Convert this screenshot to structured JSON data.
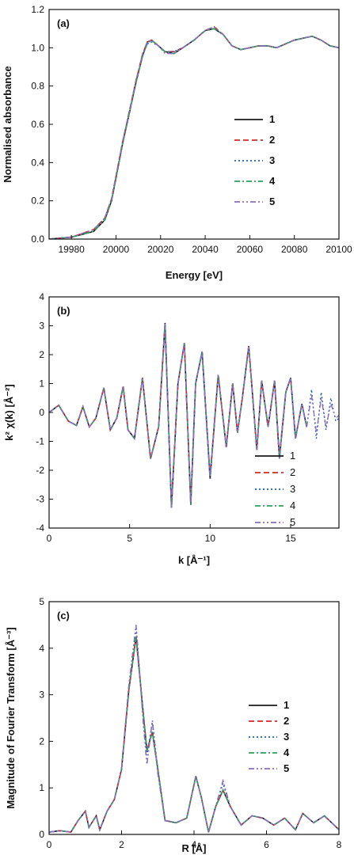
{
  "chart_data": [
    {
      "type": "line",
      "panel_label": "(a)",
      "xlabel": "Energy [eV]",
      "ylabel": "Normalised absorbance",
      "xlim": [
        19970,
        20100
      ],
      "ylim": [
        0.0,
        1.2
      ],
      "xticks": [
        19980,
        20000,
        20020,
        20040,
        20060,
        20080,
        20100
      ],
      "yticks": [
        0.0,
        0.2,
        0.4,
        0.6,
        0.8,
        1.0,
        1.2
      ],
      "xtick_labels": [
        "19980",
        "20000",
        "20020",
        "20040",
        "20060",
        "20080",
        "20100"
      ],
      "ytick_labels": [
        "0.0",
        "0.2",
        "0.4",
        "0.6",
        "0.8",
        "1.0",
        "1.2"
      ],
      "legend": "right",
      "legend_bold": true,
      "series": [
        {
          "name": "1",
          "color": "#1a1a1a",
          "dash": "solid"
        },
        {
          "name": "2",
          "color": "#d62728",
          "dash": "dash"
        },
        {
          "name": "3",
          "color": "#1f5fbf",
          "dash": "dot"
        },
        {
          "name": "4",
          "color": "#2ca05a",
          "dash": "dashdot"
        },
        {
          "name": "5",
          "color": "#8a6fbf",
          "dash": "dashdotdot"
        }
      ],
      "x": [
        19970,
        19980,
        19990,
        19995,
        19998,
        20000,
        20003,
        20006,
        20009,
        20012,
        20014,
        20016,
        20019,
        20022,
        20026,
        20030,
        20035,
        20040,
        20044,
        20048,
        20052,
        20056,
        20060,
        20064,
        20068,
        20072,
        20076,
        20080,
        20084,
        20088,
        20092,
        20096,
        20100
      ],
      "values": [
        [
          0.0,
          0.01,
          0.04,
          0.1,
          0.2,
          0.32,
          0.5,
          0.66,
          0.82,
          0.96,
          1.03,
          1.04,
          1.01,
          0.98,
          0.97,
          1.0,
          1.04,
          1.09,
          1.1,
          1.07,
          1.01,
          0.99,
          1.0,
          1.01,
          1.01,
          1.0,
          1.02,
          1.04,
          1.05,
          1.06,
          1.04,
          1.01,
          1.0
        ],
        [
          0.0,
          0.01,
          0.05,
          0.11,
          0.21,
          0.33,
          0.51,
          0.67,
          0.83,
          0.97,
          1.03,
          1.04,
          1.01,
          0.98,
          0.98,
          1.0,
          1.04,
          1.09,
          1.11,
          1.07,
          1.01,
          0.99,
          1.0,
          1.01,
          1.01,
          1.0,
          1.02,
          1.04,
          1.05,
          1.06,
          1.04,
          1.01,
          1.0
        ],
        [
          0.0,
          0.01,
          0.05,
          0.11,
          0.21,
          0.33,
          0.51,
          0.67,
          0.83,
          0.96,
          1.02,
          1.03,
          1.01,
          0.98,
          0.98,
          1.0,
          1.04,
          1.09,
          1.1,
          1.07,
          1.01,
          0.99,
          1.0,
          1.01,
          1.01,
          1.0,
          1.02,
          1.04,
          1.05,
          1.06,
          1.04,
          1.01,
          1.0
        ],
        [
          0.0,
          0.01,
          0.04,
          0.1,
          0.2,
          0.32,
          0.5,
          0.66,
          0.82,
          0.96,
          1.02,
          1.04,
          1.01,
          0.98,
          0.97,
          1.0,
          1.04,
          1.09,
          1.1,
          1.07,
          1.01,
          0.99,
          1.0,
          1.01,
          1.01,
          1.0,
          1.02,
          1.04,
          1.05,
          1.06,
          1.04,
          1.01,
          1.0
        ],
        [
          0.0,
          0.01,
          0.05,
          0.11,
          0.21,
          0.33,
          0.51,
          0.67,
          0.83,
          0.97,
          1.03,
          1.04,
          1.01,
          0.97,
          0.97,
          1.0,
          1.04,
          1.09,
          1.11,
          1.07,
          1.01,
          0.99,
          1.0,
          1.01,
          1.01,
          1.0,
          1.02,
          1.04,
          1.05,
          1.06,
          1.04,
          1.01,
          1.0
        ]
      ]
    },
    {
      "type": "line",
      "panel_label": "(b)",
      "xlabel": "k [Å⁻¹]",
      "ylabel": "k² χ(k) [Å⁻²]",
      "xlim": [
        0,
        18
      ],
      "ylim": [
        -4,
        4
      ],
      "xticks": [
        0,
        5,
        10,
        15
      ],
      "yticks": [
        -4,
        -3,
        -2,
        -1,
        0,
        1,
        2,
        3,
        4
      ],
      "xtick_labels": [
        "0",
        "5",
        "10",
        "15"
      ],
      "ytick_labels": [
        "-4",
        "-3",
        "-2",
        "-1",
        "0",
        "1",
        "2",
        "3",
        "4"
      ],
      "legend": "bottom-right",
      "legend_bold": false,
      "series": [
        {
          "name": "1",
          "color": "#1a1a1a",
          "dash": "solid"
        },
        {
          "name": "2",
          "color": "#d62728",
          "dash": "dash"
        },
        {
          "name": "3",
          "color": "#1f5fbf",
          "dash": "dot"
        },
        {
          "name": "4",
          "color": "#2ca05a",
          "dash": "dashdot"
        },
        {
          "name": "5",
          "color": "#8a6fbf",
          "dash": "dashdotdot"
        }
      ],
      "x": [
        0.0,
        0.6,
        1.2,
        1.7,
        2.1,
        2.5,
        2.9,
        3.4,
        3.8,
        4.2,
        4.6,
        4.9,
        5.3,
        5.8,
        6.3,
        6.8,
        7.2,
        7.6,
        8.0,
        8.4,
        8.8,
        9.1,
        9.5,
        10.0,
        10.5,
        11.0,
        11.4,
        11.7,
        12.0,
        12.4,
        12.9,
        13.2,
        13.6,
        14.0,
        14.3,
        14.7,
        15.0,
        15.3,
        15.7,
        16.0
      ],
      "values": [
        [
          0.0,
          0.25,
          -0.3,
          -0.45,
          0.2,
          -0.5,
          -0.2,
          0.85,
          -0.6,
          -0.2,
          0.9,
          -0.6,
          -0.9,
          1.2,
          -1.6,
          -0.5,
          3.1,
          -3.3,
          1.0,
          2.4,
          -3.2,
          1.0,
          2.1,
          -2.3,
          1.3,
          -1.2,
          1.0,
          -0.7,
          0.5,
          2.3,
          -1.3,
          1.1,
          -0.5,
          1.1,
          -1.6,
          0.7,
          1.2,
          -0.9,
          0.3,
          -0.5
        ],
        [
          0.0,
          0.25,
          -0.3,
          -0.45,
          0.2,
          -0.5,
          -0.2,
          0.85,
          -0.6,
          -0.2,
          0.9,
          -0.6,
          -0.9,
          1.2,
          -1.6,
          -0.5,
          3.0,
          -3.2,
          1.0,
          2.4,
          -3.1,
          1.0,
          2.1,
          -2.2,
          1.3,
          -1.2,
          1.0,
          -0.7,
          0.5,
          2.3,
          -1.3,
          1.1,
          -0.5,
          1.1,
          -1.5,
          0.7,
          1.2,
          -0.9,
          0.3,
          -0.5
        ],
        [
          0.0,
          0.25,
          -0.3,
          -0.45,
          0.2,
          -0.5,
          -0.2,
          0.85,
          -0.6,
          -0.2,
          0.9,
          -0.6,
          -0.9,
          1.2,
          -1.6,
          -0.5,
          3.0,
          -3.2,
          1.0,
          2.4,
          -3.1,
          1.0,
          2.1,
          -2.2,
          1.3,
          -1.2,
          1.0,
          -0.7,
          0.5,
          2.3,
          -1.3,
          1.1,
          -0.5,
          1.1,
          -1.5,
          0.7,
          1.2,
          -0.9,
          0.3,
          -0.5
        ],
        [
          0.0,
          0.25,
          -0.3,
          -0.45,
          0.2,
          -0.5,
          -0.2,
          0.85,
          -0.6,
          -0.2,
          0.9,
          -0.6,
          -0.9,
          1.2,
          -1.6,
          -0.5,
          3.1,
          -3.3,
          1.0,
          2.4,
          -3.2,
          1.0,
          2.1,
          -2.3,
          1.3,
          -1.2,
          1.0,
          -0.7,
          0.5,
          2.3,
          -1.3,
          1.1,
          -0.5,
          1.1,
          -1.6,
          0.7,
          1.2,
          -0.9,
          0.3,
          -0.5
        ],
        [
          0.0,
          0.25,
          -0.3,
          -0.45,
          0.2,
          -0.5,
          -0.2,
          0.85,
          -0.6,
          -0.2,
          0.9,
          -0.6,
          -0.9,
          1.2,
          -1.6,
          -0.5,
          3.1,
          -3.3,
          1.0,
          2.4,
          -3.2,
          1.0,
          2.1,
          -2.3,
          1.3,
          -1.2,
          1.0,
          -0.7,
          0.5,
          2.3,
          -1.3,
          1.1,
          -0.5,
          1.1,
          -1.6,
          0.7,
          1.2,
          -0.9,
          0.3,
          -0.5
        ]
      ],
      "extra_series": [
        {
          "name": "3",
          "x": [
            16.0,
            16.3,
            16.6,
            16.9,
            17.2,
            17.5,
            17.8,
            18.0
          ],
          "values": [
            -0.5,
            0.8,
            -0.9,
            0.7,
            -0.6,
            0.5,
            -0.3,
            -0.2
          ]
        },
        {
          "name": "5",
          "x": [
            16.0,
            16.3,
            16.6,
            16.9,
            17.2,
            17.5,
            17.8,
            18.0
          ],
          "values": [
            -0.5,
            0.6,
            -0.7,
            0.5,
            -0.5,
            0.3,
            -0.2,
            -0.1
          ]
        }
      ]
    },
    {
      "type": "line",
      "panel_label": "(c)",
      "xlabel": "R [Å]",
      "ylabel": "Magnitude of Fourier Transform [Å⁻³]",
      "xlim": [
        0,
        8
      ],
      "ylim": [
        0,
        5
      ],
      "xticks": [
        0,
        2,
        4,
        6,
        8
      ],
      "yticks": [
        0,
        1,
        2,
        3,
        4,
        5
      ],
      "xtick_labels": [
        "0",
        "2",
        "4",
        "6",
        "8"
      ],
      "ytick_labels": [
        "0",
        "1",
        "2",
        "3",
        "4",
        "5"
      ],
      "legend": "right",
      "legend_bold": true,
      "series": [
        {
          "name": "1",
          "color": "#1a1a1a",
          "dash": "solid"
        },
        {
          "name": "2",
          "color": "#d62728",
          "dash": "dash"
        },
        {
          "name": "3",
          "color": "#1f5fbf",
          "dash": "dot"
        },
        {
          "name": "4",
          "color": "#2ca05a",
          "dash": "dashdot"
        },
        {
          "name": "5",
          "color": "#8a6fbf",
          "dash": "dashdotdot"
        }
      ],
      "x": [
        0.0,
        0.3,
        0.6,
        0.8,
        1.0,
        1.1,
        1.3,
        1.4,
        1.6,
        1.8,
        2.0,
        2.2,
        2.4,
        2.6,
        2.7,
        2.85,
        3.0,
        3.2,
        3.5,
        3.8,
        4.05,
        4.2,
        4.4,
        4.6,
        4.8,
        5.0,
        5.3,
        5.6,
        5.9,
        6.2,
        6.5,
        6.8,
        7.0,
        7.3,
        7.6,
        8.0
      ],
      "values": [
        [
          0.05,
          0.08,
          0.05,
          0.3,
          0.5,
          0.15,
          0.4,
          0.1,
          0.5,
          0.75,
          1.4,
          3.1,
          4.25,
          2.6,
          1.8,
          2.2,
          1.4,
          0.3,
          0.25,
          0.35,
          1.25,
          0.8,
          0.05,
          0.6,
          0.95,
          0.6,
          0.2,
          0.4,
          0.35,
          0.2,
          0.35,
          0.1,
          0.45,
          0.25,
          0.4,
          0.1
        ],
        [
          0.05,
          0.08,
          0.05,
          0.3,
          0.5,
          0.15,
          0.4,
          0.1,
          0.5,
          0.75,
          1.4,
          3.1,
          4.25,
          2.6,
          1.8,
          2.2,
          1.4,
          0.3,
          0.25,
          0.35,
          1.25,
          0.8,
          0.05,
          0.6,
          0.95,
          0.6,
          0.2,
          0.4,
          0.35,
          0.2,
          0.35,
          0.1,
          0.45,
          0.25,
          0.4,
          0.1
        ],
        [
          0.05,
          0.08,
          0.05,
          0.3,
          0.5,
          0.15,
          0.4,
          0.1,
          0.5,
          0.75,
          1.4,
          3.2,
          4.45,
          2.5,
          1.7,
          2.4,
          1.4,
          0.3,
          0.25,
          0.35,
          1.25,
          0.8,
          0.05,
          0.6,
          1.1,
          0.6,
          0.2,
          0.4,
          0.35,
          0.2,
          0.35,
          0.1,
          0.45,
          0.25,
          0.4,
          0.1
        ],
        [
          0.05,
          0.08,
          0.05,
          0.3,
          0.5,
          0.15,
          0.4,
          0.1,
          0.5,
          0.75,
          1.4,
          3.1,
          4.25,
          2.6,
          1.8,
          2.2,
          1.4,
          0.3,
          0.25,
          0.35,
          1.25,
          0.8,
          0.05,
          0.6,
          0.95,
          0.6,
          0.2,
          0.4,
          0.35,
          0.2,
          0.35,
          0.1,
          0.45,
          0.25,
          0.4,
          0.1
        ],
        [
          0.05,
          0.08,
          0.05,
          0.3,
          0.5,
          0.15,
          0.4,
          0.1,
          0.5,
          0.75,
          1.4,
          3.2,
          4.5,
          2.4,
          1.5,
          2.45,
          1.3,
          0.3,
          0.25,
          0.35,
          1.25,
          0.8,
          0.05,
          0.6,
          1.15,
          0.6,
          0.2,
          0.4,
          0.35,
          0.2,
          0.35,
          0.1,
          0.45,
          0.25,
          0.4,
          0.1
        ]
      ]
    }
  ]
}
